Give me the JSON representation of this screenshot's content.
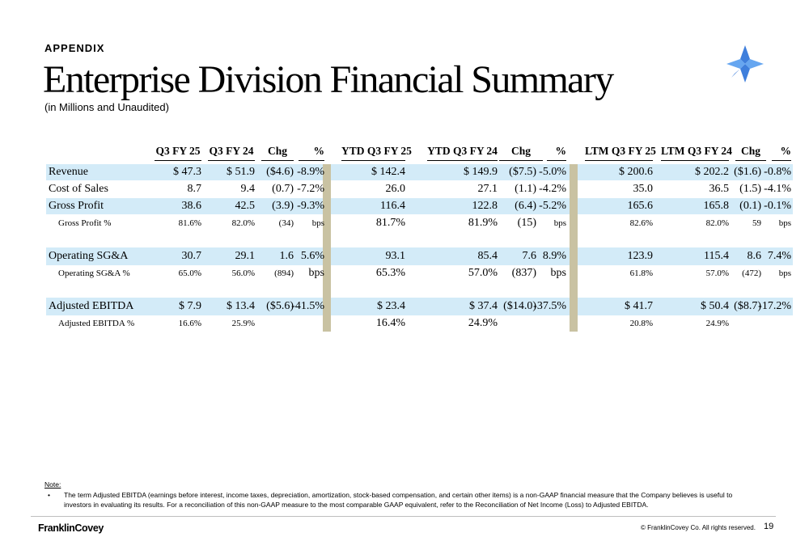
{
  "header": {
    "eyebrow": "APPENDIX",
    "title": "Enterprise Division Financial Summary",
    "subtitle": "(in Millions and Unaudited)",
    "logo_icon": "four-point-star-icon",
    "accent_color": "#4a8de0"
  },
  "table": {
    "columns": [
      "Q3 FY 25",
      "Q3 FY 24",
      "Chg",
      "%",
      "YTD Q3 FY 25",
      "YTD Q3 FY 24",
      "Chg",
      "%",
      "LTM Q3 FY 25",
      "LTM Q3 FY 24",
      "Chg",
      "%"
    ],
    "rows": [
      {
        "label": "Revenue",
        "values": [
          "$ 47.3",
          "$ 51.9",
          "($4.6)",
          "-8.9%",
          "$ 142.4",
          "$ 149.9",
          "($7.5)",
          "-5.0%",
          "$ 200.6",
          "$ 202.2",
          "($1.6)",
          "-0.8%"
        ]
      },
      {
        "label": "Cost of Sales",
        "values": [
          "8.7",
          "9.4",
          "(0.7)",
          "-7.2%",
          "26.0",
          "27.1",
          "(1.1)",
          "-4.2%",
          "35.0",
          "36.5",
          "(1.5)",
          "-4.1%"
        ]
      },
      {
        "label": "Gross Profit",
        "values": [
          "38.6",
          "42.5",
          "(3.9)",
          "-9.3%",
          "116.4",
          "122.8",
          "(6.4)",
          "-5.2%",
          "165.6",
          "165.8",
          "(0.1)",
          "-0.1%"
        ]
      },
      {
        "label": "Gross Profit %",
        "values": [
          "81.6%",
          "82.0%",
          "(34)",
          "bps",
          "81.7%",
          "81.9%",
          "(15)",
          "bps",
          "82.6%",
          "82.0%",
          "59",
          "bps"
        ]
      },
      {
        "label": "Operating SG&A",
        "values": [
          "30.7",
          "29.1",
          "1.6",
          "5.6%",
          "93.1",
          "85.4",
          "7.6",
          "8.9%",
          "123.9",
          "115.4",
          "8.6",
          "7.4%"
        ]
      },
      {
        "label": "Operating SG&A %",
        "values": [
          "65.0%",
          "56.0%",
          "(894)",
          "bps",
          "65.3%",
          "57.0%",
          "(837)",
          "bps",
          "61.8%",
          "57.0%",
          "(472)",
          "bps"
        ]
      },
      {
        "label": "Adjusted EBITDA",
        "values": [
          "$ 7.9",
          "$ 13.4",
          "($5.6)",
          "-41.5%",
          "$ 23.4",
          "$ 37.4",
          "($14.0)",
          "-37.5%",
          "$ 41.7",
          "$ 50.4",
          "($8.7)",
          "-17.2%"
        ]
      },
      {
        "label": "Adjusted EBITDA %",
        "values": [
          "16.6%",
          "25.9%",
          "",
          "",
          "16.4%",
          "24.9%",
          "",
          "",
          "20.8%",
          "24.9%",
          "",
          ""
        ]
      }
    ],
    "band_color": "#d3ebf8",
    "divider_color": "#c9c2a2"
  },
  "note": {
    "title": "Note:",
    "items": [
      "The term Adjusted EBITDA (earnings before interest, income taxes, depreciation, amortization, stock-based compensation, and certain other items) is a non-GAAP financial measure that the Company believes is useful to investors in evaluating its results.  For a reconciliation of this non-GAAP measure to the most comparable GAAP equivalent, refer to the Reconciliation of Net Income (Loss) to Adjusted EBITDA."
    ]
  },
  "footer": {
    "brand": "FranklinCovey",
    "copyright": "© FranklinCovey Co. All rights reserved.",
    "page_number": "19"
  }
}
